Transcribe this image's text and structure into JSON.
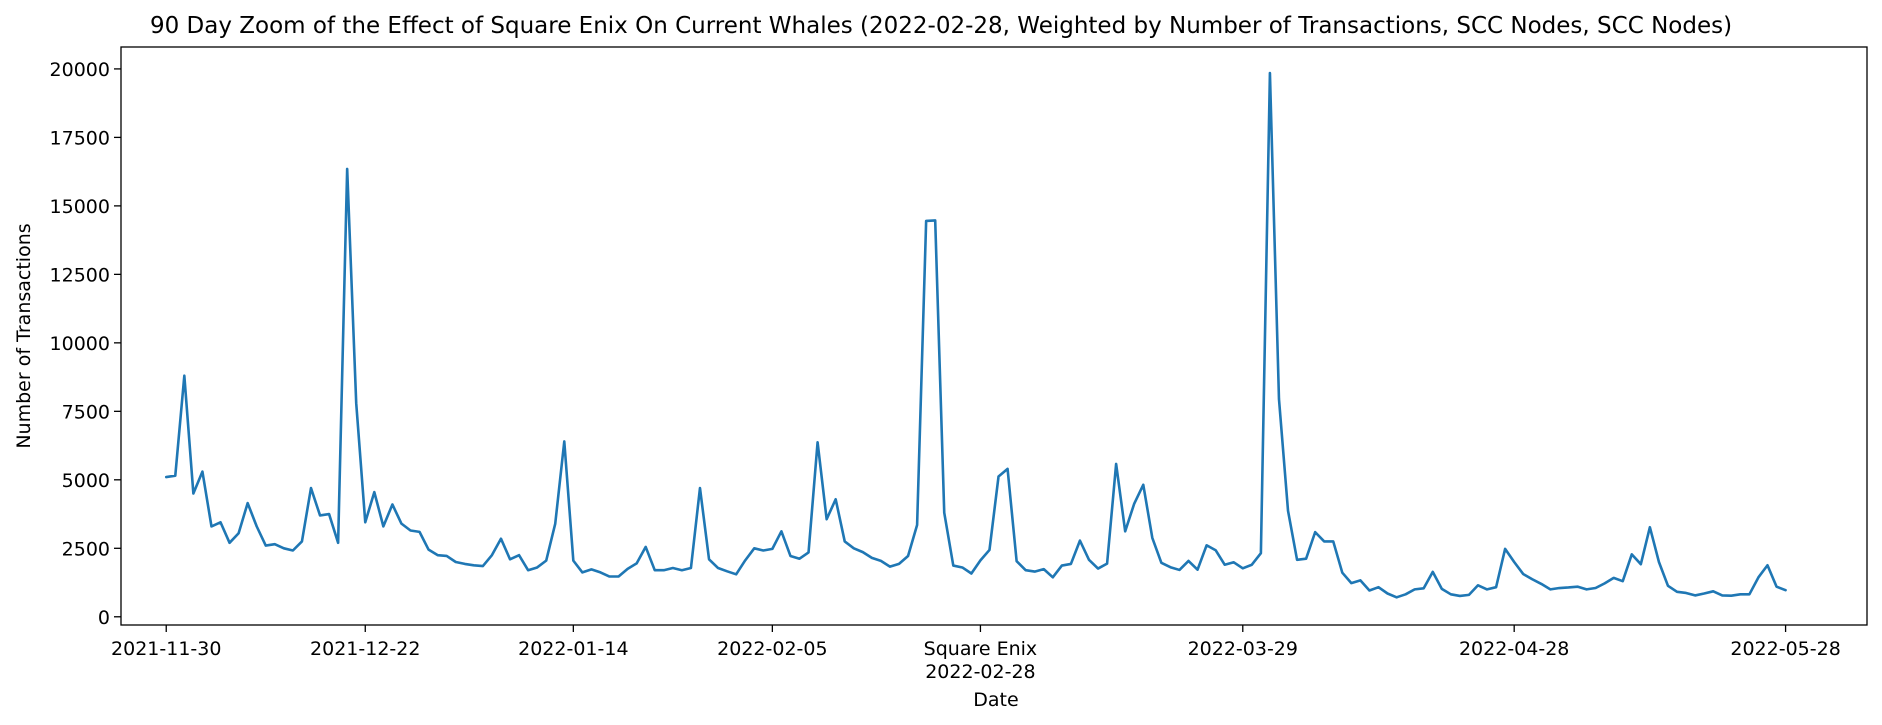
{
  "chart_data": {
    "type": "line",
    "title": "90 Day Zoom of the Effect of Square Enix On Current Whales (2022-02-28, Weighted by Number of Transactions, SCC Nodes, SCC Nodes)",
    "xlabel": "Date",
    "ylabel": "Number of Transactions",
    "event_label": "Square Enix",
    "event_date": "2022-02-28",
    "x_ticks": [
      "2021-11-30",
      "2021-12-22",
      "2022-01-14",
      "2022-02-05",
      "2022-02-28",
      "2022-03-29",
      "2022-04-28",
      "2022-05-28"
    ],
    "y_ticks": [
      0,
      2500,
      5000,
      7500,
      10000,
      12500,
      15000,
      17500,
      20000
    ],
    "ylim": [
      -300,
      20800
    ],
    "xlim": [
      "2021-11-25",
      "2022-06-06"
    ],
    "grid": false,
    "color": "#1f77b4",
    "start_date": "2021-11-30",
    "series": [
      {
        "values": [
          5100,
          5150,
          8800,
          4500,
          5300,
          3300,
          3450,
          2700,
          3050,
          4150,
          3300,
          2600,
          2650,
          2500,
          2420,
          2750,
          4700,
          3700,
          3750,
          2700,
          16350,
          7800,
          3450,
          4550,
          3300,
          4100,
          3400,
          3150,
          3100,
          2450,
          2250,
          2220,
          2000,
          1930,
          1880,
          1850,
          2250,
          2850,
          2100,
          2250,
          1700,
          1800,
          2050,
          3400,
          6400,
          2050,
          1620,
          1730,
          1620,
          1470,
          1470,
          1750,
          1950,
          2550,
          1700,
          1700,
          1780,
          1700,
          1780,
          4700,
          2100,
          1780,
          1660,
          1550,
          2060,
          2500,
          2420,
          2480,
          3120,
          2220,
          2120,
          2350,
          6370,
          3560,
          4290,
          2750,
          2500,
          2360,
          2150,
          2040,
          1830,
          1930,
          2220,
          3350,
          14450,
          14470,
          3800,
          1870,
          1800,
          1580,
          2060,
          2440,
          5120,
          5400,
          2030,
          1700,
          1650,
          1740,
          1440,
          1870,
          1930,
          2780,
          2080,
          1760,
          1940,
          5580,
          3120,
          4130,
          4820,
          2880,
          1970,
          1810,
          1710,
          2040,
          1720,
          2610,
          2430,
          1900,
          1990,
          1770,
          1900,
          2320,
          19850,
          7950,
          3870,
          2080,
          2120,
          3090,
          2750,
          2750,
          1610,
          1230,
          1330,
          960,
          1080,
          850,
          710,
          820,
          1000,
          1040,
          1640,
          1020,
          820,
          760,
          800,
          1150,
          1000,
          1080,
          2480,
          2000,
          1560,
          1370,
          1200,
          1000,
          1050,
          1070,
          1100,
          1000,
          1050,
          1220,
          1420,
          1300,
          2280,
          1920,
          3270,
          2000,
          1130,
          910,
          870,
          780,
          850,
          930,
          780,
          770,
          820,
          820,
          1440,
          1880,
          1100,
          970
        ]
      }
    ]
  }
}
